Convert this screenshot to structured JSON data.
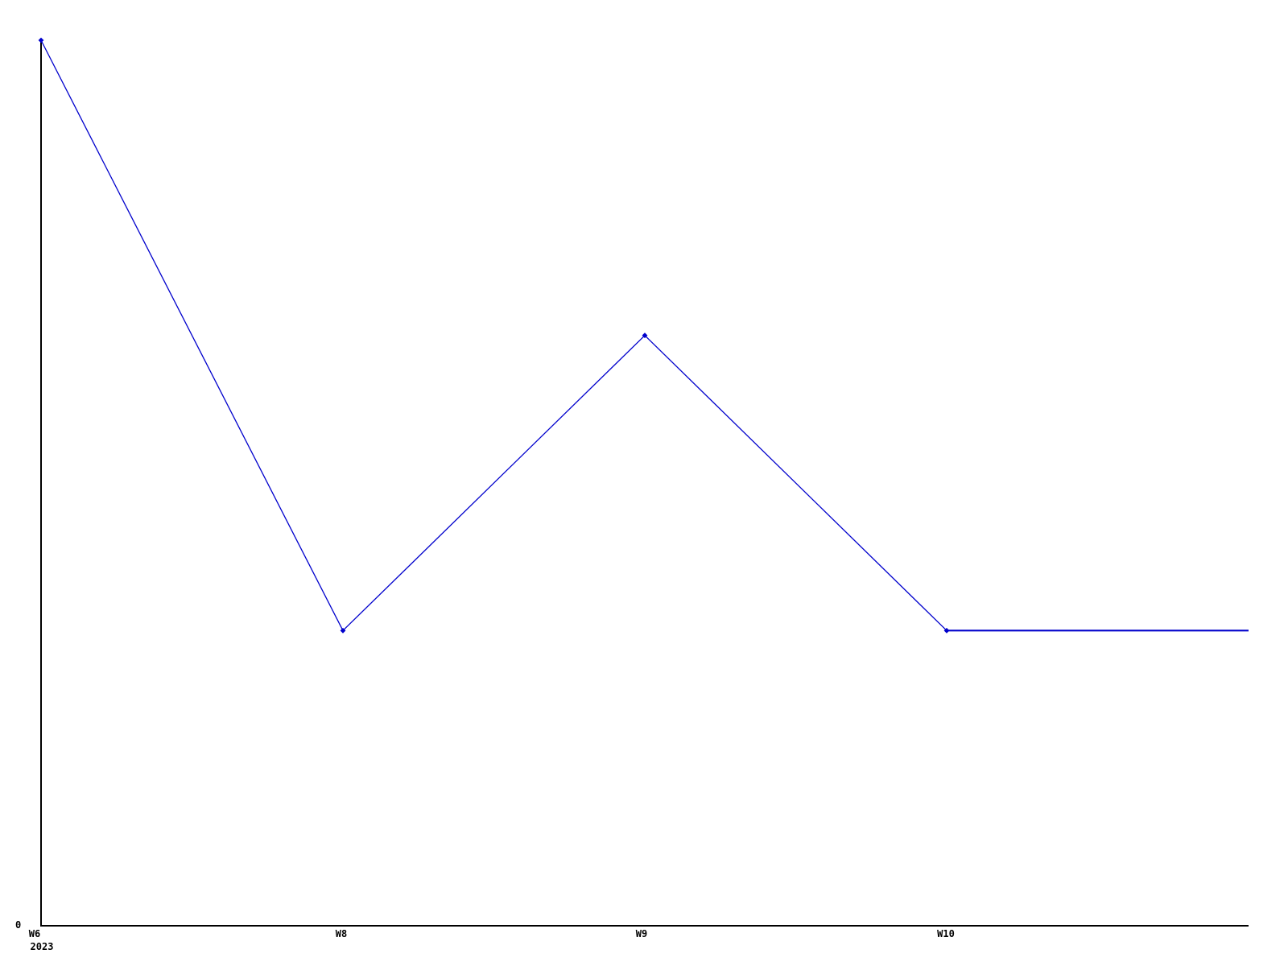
{
  "chart_data": {
    "type": "line",
    "title": "",
    "categories": [
      "W6",
      "W8",
      "W9",
      "W10",
      ""
    ],
    "values": [
      3,
      1,
      2,
      1,
      1
    ],
    "markers": [
      true,
      true,
      true,
      true,
      false
    ],
    "ylim": [
      0,
      3
    ],
    "y_tick_labels": [
      "0"
    ],
    "x_axis_secondary_label": "2023",
    "grid": false,
    "legend_position": "none",
    "line_color": "#0000cc",
    "axis_color": "#000000",
    "background": "#ffffff"
  }
}
